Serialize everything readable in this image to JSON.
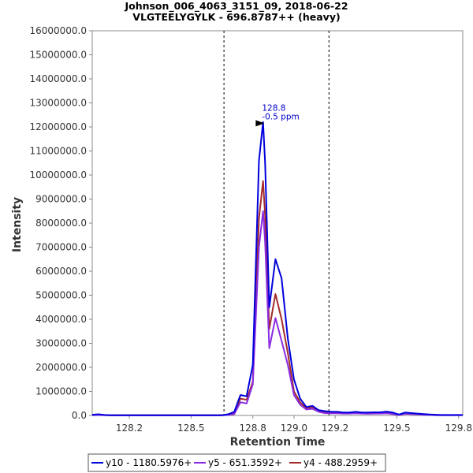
{
  "chart_data": {
    "type": "line",
    "title": "Johnson_006_4063_3151_09, 2018-06-22",
    "subtitle": "VLGTEELYGYLK - 696.8787++ (heavy)",
    "xlabel": "Retention Time",
    "ylabel": "Intensity",
    "xlim": [
      128.02,
      129.82
    ],
    "ylim": [
      0,
      16000000
    ],
    "x_ticks": [
      "128.2",
      "128.5",
      "128.8",
      "129.0",
      "129.2",
      "129.5",
      "129.8"
    ],
    "x_tick_values": [
      128.2,
      128.5,
      128.8,
      129.0,
      129.2,
      129.5,
      129.8
    ],
    "y_ticks": [
      "0.0",
      "1000000.0",
      "2000000.0",
      "3000000.0",
      "4000000.0",
      "5000000.0",
      "6000000.0",
      "7000000.0",
      "8000000.0",
      "9000000.0",
      "10000000.0",
      "11000000.0",
      "12000000.0",
      "13000000.0",
      "14000000.0",
      "15000000.0",
      "16000000.0"
    ],
    "y_tick_values": [
      0,
      1000000,
      2000000,
      3000000,
      4000000,
      5000000,
      6000000,
      7000000,
      8000000,
      9000000,
      10000000,
      11000000,
      12000000,
      13000000,
      14000000,
      15000000,
      16000000
    ],
    "grid": false,
    "legend_position": "bottom",
    "vlines": [
      128.66,
      129.17
    ],
    "annotation": {
      "x": 128.86,
      "y": 12150000,
      "lines": [
        "128.8",
        "-0.5 ppm"
      ],
      "color": "#0000cc"
    },
    "series": [
      {
        "name": "y10 - 1180.5976+",
        "color": "#0000dd",
        "x": [
          128.02,
          128.05,
          128.08,
          128.11,
          128.14,
          128.17,
          128.2,
          128.23,
          128.26,
          128.29,
          128.32,
          128.35,
          128.38,
          128.41,
          128.44,
          128.47,
          128.5,
          128.53,
          128.56,
          128.59,
          128.62,
          128.65,
          128.68,
          128.71,
          128.74,
          128.77,
          128.8,
          128.83,
          128.85,
          128.86,
          128.88,
          128.91,
          128.94,
          128.97,
          129.0,
          129.03,
          129.06,
          129.09,
          129.12,
          129.15,
          129.18,
          129.21,
          129.24,
          129.27,
          129.3,
          129.33,
          129.36,
          129.39,
          129.42,
          129.45,
          129.48,
          129.51,
          129.54,
          129.57,
          129.6,
          129.63,
          129.66,
          129.69,
          129.72,
          129.75,
          129.78,
          129.82
        ],
        "y": [
          30000,
          50000,
          20000,
          10000,
          10000,
          10000,
          10000,
          10000,
          10000,
          10000,
          10000,
          10000,
          10000,
          10000,
          10000,
          10000,
          10000,
          10000,
          10000,
          10000,
          10000,
          10000,
          50000,
          150000,
          850000,
          800000,
          2100000,
          10600000,
          12200000,
          10500000,
          4500000,
          6500000,
          5700000,
          3200000,
          1500000,
          700000,
          350000,
          400000,
          220000,
          180000,
          150000,
          150000,
          120000,
          120000,
          150000,
          120000,
          120000,
          130000,
          130000,
          160000,
          120000,
          40000,
          120000,
          100000,
          80000,
          60000,
          40000,
          30000,
          20000,
          20000,
          20000,
          20000
        ]
      },
      {
        "name": "y5 - 651.3592+",
        "color": "#8a2be2",
        "x": [
          128.02,
          128.05,
          128.08,
          128.11,
          128.14,
          128.17,
          128.2,
          128.23,
          128.26,
          128.29,
          128.32,
          128.35,
          128.38,
          128.41,
          128.44,
          128.47,
          128.5,
          128.53,
          128.56,
          128.59,
          128.62,
          128.65,
          128.68,
          128.71,
          128.74,
          128.77,
          128.8,
          128.83,
          128.85,
          128.86,
          128.88,
          128.91,
          128.94,
          128.97,
          129.0,
          129.03,
          129.06,
          129.09,
          129.12,
          129.15,
          129.18,
          129.21,
          129.24,
          129.27,
          129.3,
          129.33,
          129.36,
          129.39,
          129.42,
          129.45,
          129.48,
          129.51,
          129.54,
          129.57,
          129.6,
          129.63,
          129.66,
          129.69,
          129.72,
          129.75,
          129.78,
          129.82
        ],
        "y": [
          10000,
          20000,
          10000,
          5000,
          5000,
          5000,
          5000,
          5000,
          5000,
          5000,
          5000,
          5000,
          5000,
          5000,
          5000,
          5000,
          5000,
          5000,
          5000,
          5000,
          5000,
          5000,
          20000,
          60000,
          550000,
          500000,
          1300000,
          7000000,
          8500000,
          7200000,
          2800000,
          4050000,
          3100000,
          2100000,
          850000,
          450000,
          250000,
          280000,
          150000,
          100000,
          90000,
          90000,
          80000,
          80000,
          90000,
          80000,
          70000,
          80000,
          80000,
          90000,
          60000,
          20000,
          70000,
          60000,
          50000,
          30000,
          20000,
          10000,
          10000,
          10000,
          10000,
          10000
        ]
      },
      {
        "name": "y4 - 488.2959+",
        "color": "#a52a2a",
        "x": [
          128.02,
          128.05,
          128.08,
          128.11,
          128.14,
          128.17,
          128.2,
          128.23,
          128.26,
          128.29,
          128.32,
          128.35,
          128.38,
          128.41,
          128.44,
          128.47,
          128.5,
          128.53,
          128.56,
          128.59,
          128.62,
          128.65,
          128.68,
          128.71,
          128.74,
          128.77,
          128.8,
          128.83,
          128.85,
          128.86,
          128.88,
          128.91,
          128.94,
          128.97,
          129.0,
          129.03,
          129.06,
          129.09,
          129.12,
          129.15,
          129.18,
          129.21,
          129.24,
          129.27,
          129.3,
          129.33,
          129.36,
          129.39,
          129.42,
          129.45,
          129.48,
          129.51,
          129.54,
          129.57,
          129.6,
          129.63,
          129.66,
          129.69,
          129.72,
          129.75,
          129.78,
          129.82
        ],
        "y": [
          20000,
          30000,
          15000,
          8000,
          8000,
          8000,
          8000,
          8000,
          8000,
          8000,
          8000,
          8000,
          8000,
          8000,
          8000,
          8000,
          8000,
          8000,
          8000,
          8000,
          8000,
          8000,
          30000,
          100000,
          700000,
          650000,
          1400000,
          8200000,
          9750000,
          8300000,
          3600000,
          5050000,
          4000000,
          2600000,
          1000000,
          550000,
          300000,
          330000,
          180000,
          140000,
          120000,
          120000,
          100000,
          100000,
          120000,
          100000,
          100000,
          110000,
          100000,
          120000,
          80000,
          30000,
          90000,
          80000,
          60000,
          40000,
          30000,
          20000,
          15000,
          15000,
          15000,
          15000
        ]
      }
    ]
  }
}
